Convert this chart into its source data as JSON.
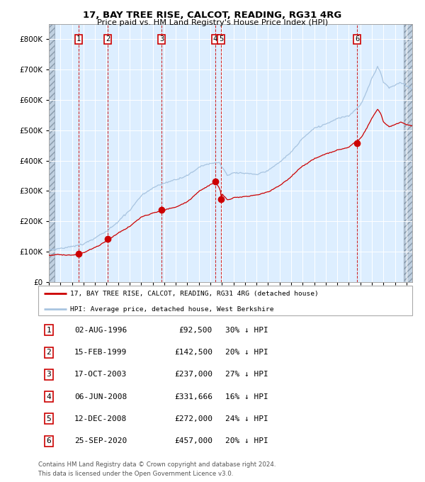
{
  "title": "17, BAY TREE RISE, CALCOT, READING, RG31 4RG",
  "subtitle": "Price paid vs. HM Land Registry's House Price Index (HPI)",
  "legend_property": "17, BAY TREE RISE, CALCOT, READING, RG31 4RG (detached house)",
  "legend_hpi": "HPI: Average price, detached house, West Berkshire",
  "footnote1": "Contains HM Land Registry data © Crown copyright and database right 2024.",
  "footnote2": "This data is licensed under the Open Government Licence v3.0.",
  "transactions": [
    {
      "num": 1,
      "date_str": "02-AUG-1996",
      "date_x": 1996.583,
      "price": 92500,
      "pct": "30% ↓ HPI"
    },
    {
      "num": 2,
      "date_str": "15-FEB-1999",
      "date_x": 1999.121,
      "price": 142500,
      "pct": "20% ↓ HPI"
    },
    {
      "num": 3,
      "date_str": "17-OCT-2003",
      "date_x": 2003.792,
      "price": 237000,
      "pct": "27% ↓ HPI"
    },
    {
      "num": 4,
      "date_str": "06-JUN-2008",
      "date_x": 2008.431,
      "price": 331666,
      "pct": "16% ↓ HPI"
    },
    {
      "num": 5,
      "date_str": "12-DEC-2008",
      "date_x": 2008.95,
      "price": 272000,
      "pct": "24% ↓ HPI"
    },
    {
      "num": 6,
      "date_str": "25-SEP-2020",
      "date_x": 2020.729,
      "price": 457000,
      "pct": "20% ↓ HPI"
    }
  ],
  "xlim": [
    1994.0,
    2025.5
  ],
  "ylim": [
    0,
    850000
  ],
  "yticks": [
    0,
    100000,
    200000,
    300000,
    400000,
    500000,
    600000,
    700000,
    800000
  ],
  "ytick_labels": [
    "£0",
    "£100K",
    "£200K",
    "£300K",
    "£400K",
    "£500K",
    "£600K",
    "£700K",
    "£800K"
  ],
  "xticks": [
    1994,
    1995,
    1996,
    1997,
    1998,
    1999,
    2000,
    2001,
    2002,
    2003,
    2004,
    2005,
    2006,
    2007,
    2008,
    2009,
    2010,
    2011,
    2012,
    2013,
    2014,
    2015,
    2016,
    2017,
    2018,
    2019,
    2020,
    2021,
    2022,
    2023,
    2024,
    2025
  ],
  "hpi_color": "#a8c4e0",
  "property_color": "#cc0000",
  "plot_bg": "#ddeeff",
  "grid_color": "#ffffff",
  "vline_color": "#cc0000",
  "hatch_color": "#c0d0e0",
  "hatch_data_start": 1994.5,
  "hatch_data_end": 2024.75,
  "row_data": [
    [
      "1",
      "02-AUG-1996",
      "£92,500",
      "30% ↓ HPI"
    ],
    [
      "2",
      "15-FEB-1999",
      "£142,500",
      "20% ↓ HPI"
    ],
    [
      "3",
      "17-OCT-2003",
      "£237,000",
      "27% ↓ HPI"
    ],
    [
      "4",
      "06-JUN-2008",
      "£331,666",
      "16% ↓ HPI"
    ],
    [
      "5",
      "12-DEC-2008",
      "£272,000",
      "24% ↓ HPI"
    ],
    [
      "6",
      "25-SEP-2020",
      "£457,000",
      "20% ↓ HPI"
    ]
  ]
}
